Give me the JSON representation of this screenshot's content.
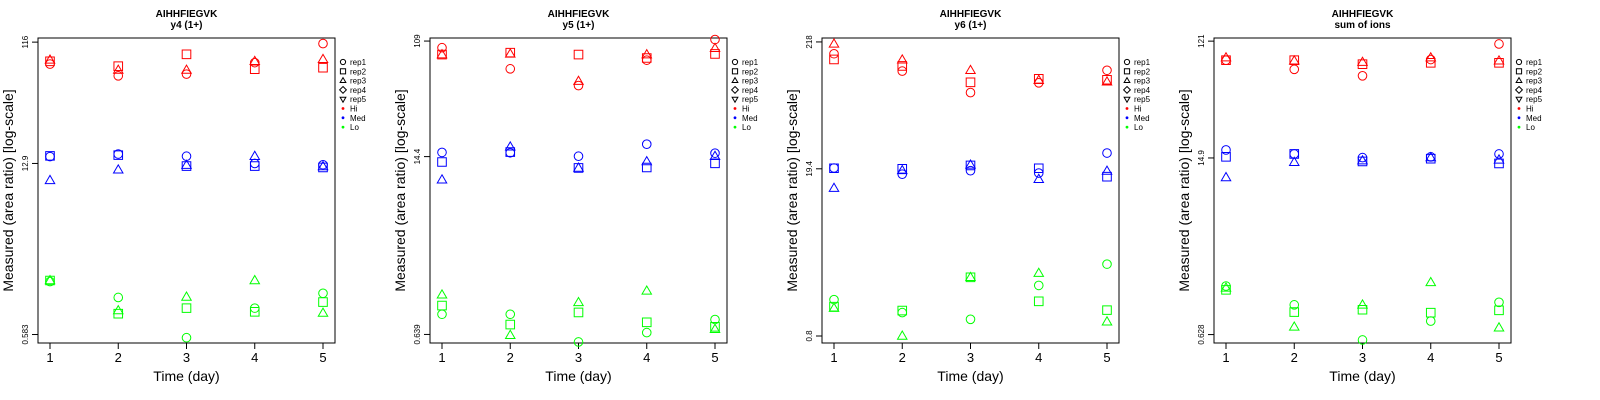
{
  "colors": {
    "Hi": "#ff0000",
    "Med": "#0000ff",
    "Lo": "#00ff00"
  },
  "legend": [
    {
      "label": "rep1",
      "marker": "circle"
    },
    {
      "label": "rep2",
      "marker": "square"
    },
    {
      "label": "rep3",
      "marker": "triangle-up"
    },
    {
      "label": "rep4",
      "marker": "diamond"
    },
    {
      "label": "rep5",
      "marker": "triangle-down"
    },
    {
      "label": "Hi",
      "marker": "dot",
      "color": "#ff0000"
    },
    {
      "label": "Med",
      "marker": "dot",
      "color": "#0000ff"
    },
    {
      "label": "Lo",
      "marker": "dot",
      "color": "#00ff00"
    }
  ],
  "chart_data": [
    {
      "type": "scatter",
      "title": "AIHHFIEGVK",
      "subtitle": "y4 (1+)",
      "xlabel": "Time (day)",
      "ylabel": "Measured (area ratio) [log-scale]",
      "x_ticks": [
        1,
        2,
        3,
        4,
        5
      ],
      "y_ticks": [
        "116",
        "12.9",
        "0.583"
      ],
      "y_scale": "log",
      "ylim": [
        0.5,
        125
      ],
      "legend_position": "right-outside",
      "series": [
        {
          "group": "Hi",
          "rep": "rep1",
          "points": [
            [
              1,
              78
            ],
            [
              2,
              63
            ],
            [
              3,
              65
            ],
            [
              4,
              80
            ],
            [
              5,
              113
            ]
          ]
        },
        {
          "group": "Hi",
          "rep": "rep2",
          "points": [
            [
              1,
              82
            ],
            [
              2,
              75
            ],
            [
              3,
              93
            ],
            [
              4,
              71
            ],
            [
              5,
              73
            ]
          ]
        },
        {
          "group": "Hi",
          "rep": "rep3",
          "points": [
            [
              1,
              84
            ],
            [
              2,
              70
            ],
            [
              3,
              70
            ],
            [
              4,
              82
            ],
            [
              5,
              85
            ]
          ]
        },
        {
          "group": "Med",
          "rep": "rep1",
          "points": [
            [
              1,
              14.6
            ],
            [
              2,
              15.3
            ],
            [
              3,
              14.7
            ],
            [
              4,
              12.9
            ],
            [
              5,
              12.6
            ]
          ]
        },
        {
          "group": "Med",
          "rep": "rep2",
          "points": [
            [
              1,
              14.8
            ],
            [
              2,
              15.0
            ],
            [
              3,
              12.3
            ],
            [
              4,
              12.3
            ],
            [
              5,
              12.0
            ]
          ]
        },
        {
          "group": "Med",
          "rep": "rep3",
          "points": [
            [
              1,
              9.5
            ],
            [
              2,
              11.5
            ],
            [
              3,
              12.5
            ],
            [
              4,
              14.7
            ],
            [
              5,
              12.2
            ]
          ]
        },
        {
          "group": "Lo",
          "rep": "rep1",
          "points": [
            [
              1,
              1.52
            ],
            [
              2,
              1.14
            ],
            [
              3,
              0.55
            ],
            [
              4,
              0.94
            ],
            [
              5,
              1.23
            ]
          ]
        },
        {
          "group": "Lo",
          "rep": "rep2",
          "points": [
            [
              1,
              1.55
            ],
            [
              2,
              0.85
            ],
            [
              3,
              0.94
            ],
            [
              4,
              0.88
            ],
            [
              5,
              1.05
            ]
          ]
        },
        {
          "group": "Lo",
          "rep": "rep3",
          "points": [
            [
              1,
              1.55
            ],
            [
              2,
              0.9
            ],
            [
              3,
              1.15
            ],
            [
              4,
              1.55
            ],
            [
              5,
              0.86
            ]
          ]
        }
      ]
    },
    {
      "type": "scatter",
      "title": "AIHHFIEGVK",
      "subtitle": "y5 (1+)",
      "xlabel": "Time (day)",
      "ylabel": "Measured (area ratio) [log-scale]",
      "x_ticks": [
        1,
        2,
        3,
        4,
        5
      ],
      "y_ticks": [
        "109",
        "14.4",
        "0.639"
      ],
      "y_scale": "log",
      "ylim": [
        0.55,
        115
      ],
      "legend_position": "right-outside",
      "series": [
        {
          "group": "Hi",
          "rep": "rep1",
          "points": [
            [
              1,
              97
            ],
            [
              2,
              67
            ],
            [
              3,
              50
            ],
            [
              4,
              78
            ],
            [
              5,
              112
            ]
          ]
        },
        {
          "group": "Hi",
          "rep": "rep2",
          "points": [
            [
              1,
              86
            ],
            [
              2,
              89
            ],
            [
              3,
              86
            ],
            [
              4,
              81
            ],
            [
              5,
              87
            ]
          ]
        },
        {
          "group": "Hi",
          "rep": "rep3",
          "points": [
            [
              1,
              86
            ],
            [
              2,
              87
            ],
            [
              3,
              54
            ],
            [
              4,
              86
            ],
            [
              5,
              96
            ]
          ]
        },
        {
          "group": "Med",
          "rep": "rep1",
          "points": [
            [
              1,
              15.5
            ],
            [
              2,
              15.4
            ],
            [
              3,
              14.5
            ],
            [
              4,
              17.9
            ],
            [
              5,
              15.3
            ]
          ]
        },
        {
          "group": "Med",
          "rep": "rep2",
          "points": [
            [
              1,
              13.1
            ],
            [
              2,
              15.6
            ],
            [
              3,
              11.8
            ],
            [
              4,
              11.9
            ],
            [
              5,
              12.8
            ]
          ]
        },
        {
          "group": "Med",
          "rep": "rep3",
          "points": [
            [
              1,
              9.6
            ],
            [
              2,
              17.1
            ],
            [
              3,
              11.8
            ],
            [
              4,
              13.2
            ],
            [
              5,
              14.5
            ]
          ]
        },
        {
          "group": "Lo",
          "rep": "rep1",
          "points": [
            [
              1,
              0.91
            ],
            [
              2,
              0.91
            ],
            [
              3,
              0.56
            ],
            [
              4,
              0.66
            ],
            [
              5,
              0.83
            ]
          ]
        },
        {
          "group": "Lo",
          "rep": "rep2",
          "points": [
            [
              1,
              1.06
            ],
            [
              2,
              0.76
            ],
            [
              3,
              0.94
            ],
            [
              4,
              0.79
            ],
            [
              5,
              0.73
            ]
          ]
        },
        {
          "group": "Lo",
          "rep": "rep3",
          "points": [
            [
              1,
              1.28
            ],
            [
              2,
              0.63
            ],
            [
              3,
              1.12
            ],
            [
              4,
              1.37
            ],
            [
              5,
              0.7
            ]
          ]
        }
      ]
    },
    {
      "type": "scatter",
      "title": "AIHHFIEGVK",
      "subtitle": "y6 (1+)",
      "xlabel": "Time (day)",
      "ylabel": "Measured (area ratio) [log-scale]",
      "x_ticks": [
        1,
        2,
        3,
        4,
        5
      ],
      "y_ticks": [
        "218",
        "19.4",
        "0.8"
      ],
      "y_scale": "log",
      "ylim": [
        0.7,
        235
      ],
      "legend_position": "right-outside",
      "series": [
        {
          "group": "Hi",
          "rep": "rep1",
          "points": [
            [
              1,
              174
            ],
            [
              2,
              125
            ],
            [
              3,
              83
            ],
            [
              4,
              100
            ],
            [
              5,
              127
            ]
          ]
        },
        {
          "group": "Hi",
          "rep": "rep2",
          "points": [
            [
              1,
              156
            ],
            [
              2,
              138
            ],
            [
              3,
              101
            ],
            [
              4,
              108
            ],
            [
              5,
              106
            ]
          ]
        },
        {
          "group": "Hi",
          "rep": "rep3",
          "points": [
            [
              1,
              210
            ],
            [
              2,
              155
            ],
            [
              3,
              127
            ],
            [
              4,
              105
            ],
            [
              5,
              102
            ]
          ]
        },
        {
          "group": "Med",
          "rep": "rep1",
          "points": [
            [
              1,
              19.7
            ],
            [
              2,
              17.5
            ],
            [
              3,
              18.7
            ],
            [
              4,
              17.9
            ],
            [
              5,
              26.2
            ]
          ]
        },
        {
          "group": "Med",
          "rep": "rep2",
          "points": [
            [
              1,
              19.6
            ],
            [
              2,
              19.4
            ],
            [
              3,
              20.7
            ],
            [
              4,
              19.6
            ],
            [
              5,
              16.7
            ]
          ]
        },
        {
          "group": "Med",
          "rep": "rep3",
          "points": [
            [
              1,
              13.4
            ],
            [
              2,
              18.8
            ],
            [
              3,
              20.9
            ],
            [
              4,
              15.9
            ],
            [
              5,
              18.6
            ]
          ]
        },
        {
          "group": "Lo",
          "rep": "rep1",
          "points": [
            [
              1,
              1.6
            ],
            [
              2,
              1.25
            ],
            [
              3,
              1.1
            ],
            [
              4,
              2.1
            ],
            [
              5,
              3.15
            ]
          ]
        },
        {
          "group": "Lo",
          "rep": "rep2",
          "points": [
            [
              1,
              1.4
            ],
            [
              2,
              1.3
            ],
            [
              3,
              2.45
            ],
            [
              4,
              1.55
            ],
            [
              5,
              1.31
            ]
          ]
        },
        {
          "group": "Lo",
          "rep": "rep3",
          "points": [
            [
              1,
              1.36
            ],
            [
              2,
              0.8
            ],
            [
              3,
              2.45
            ],
            [
              4,
              2.65
            ],
            [
              5,
              1.05
            ]
          ]
        }
      ]
    },
    {
      "type": "scatter",
      "title": "AIHHFIEGVK",
      "subtitle": "sum of ions",
      "xlabel": "Time (day)",
      "ylabel": "Measured (area ratio) [log-scale]",
      "x_ticks": [
        1,
        2,
        3,
        4,
        5
      ],
      "y_ticks": [
        "121",
        "14.9",
        "0.628"
      ],
      "y_scale": "log",
      "ylim": [
        0.54,
        128
      ],
      "legend_position": "right-outside",
      "series": [
        {
          "group": "Hi",
          "rep": "rep1",
          "points": [
            [
              1,
              86
            ],
            [
              2,
              73
            ],
            [
              3,
              65
            ],
            [
              4,
              87
            ],
            [
              5,
              115
            ]
          ]
        },
        {
          "group": "Hi",
          "rep": "rep2",
          "points": [
            [
              1,
              86
            ],
            [
              2,
              86
            ],
            [
              3,
              80
            ],
            [
              4,
              82
            ],
            [
              5,
              82
            ]
          ]
        },
        {
          "group": "Hi",
          "rep": "rep3",
          "points": [
            [
              1,
              90
            ],
            [
              2,
              85
            ],
            [
              3,
              83
            ],
            [
              4,
              90
            ],
            [
              5,
              85
            ]
          ]
        },
        {
          "group": "Med",
          "rep": "rep1",
          "points": [
            [
              1,
              17.2
            ],
            [
              2,
              16.0
            ],
            [
              3,
              15.0
            ],
            [
              4,
              15.2
            ],
            [
              5,
              16.0
            ]
          ]
        },
        {
          "group": "Med",
          "rep": "rep2",
          "points": [
            [
              1,
              15.2
            ],
            [
              2,
              16.0
            ],
            [
              3,
              14.0
            ],
            [
              4,
              14.7
            ],
            [
              5,
              13.5
            ]
          ]
        },
        {
          "group": "Med",
          "rep": "rep3",
          "points": [
            [
              1,
              10.5
            ],
            [
              2,
              13.8
            ],
            [
              3,
              14.2
            ],
            [
              4,
              15.0
            ],
            [
              5,
              14.4
            ]
          ]
        },
        {
          "group": "Lo",
          "rep": "rep1",
          "points": [
            [
              1,
              1.5
            ],
            [
              2,
              1.07
            ],
            [
              3,
              0.57
            ],
            [
              4,
              0.8
            ],
            [
              5,
              1.12
            ]
          ]
        },
        {
          "group": "Lo",
          "rep": "rep2",
          "points": [
            [
              1,
              1.4
            ],
            [
              2,
              0.94
            ],
            [
              3,
              0.98
            ],
            [
              4,
              0.93
            ],
            [
              5,
              0.97
            ]
          ]
        },
        {
          "group": "Lo",
          "rep": "rep3",
          "points": [
            [
              1,
              1.45
            ],
            [
              2,
              0.72
            ],
            [
              3,
              1.07
            ],
            [
              4,
              1.6
            ],
            [
              5,
              0.71
            ]
          ]
        }
      ]
    }
  ]
}
